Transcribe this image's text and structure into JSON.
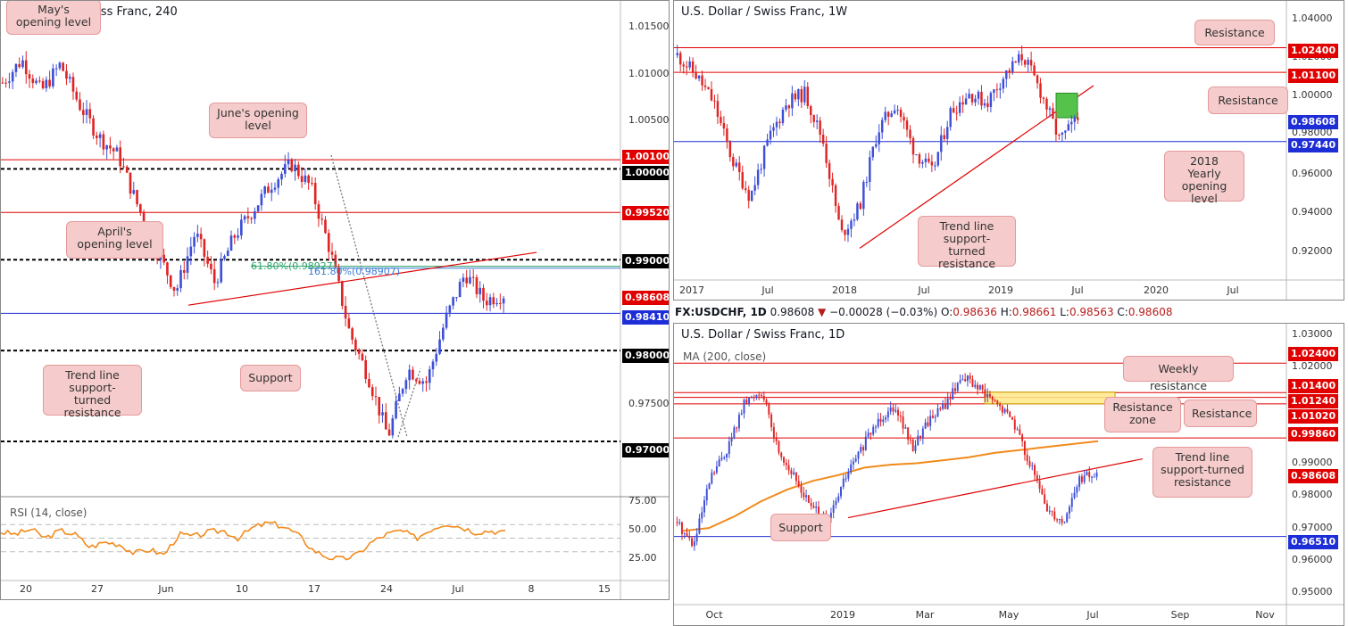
{
  "panels": {
    "h4": {
      "title": "U.S. Dollar / Swiss Franc, 240",
      "y_ticks": [
        "1.01500",
        "1.01000",
        "1.00500",
        "0.97500"
      ],
      "x_ticks": [
        "20",
        "27",
        "Jun",
        "10",
        "17",
        "24",
        "Jul",
        "8",
        "15"
      ],
      "price_tags": [
        {
          "label": "1.00100",
          "color": "#e00000"
        },
        {
          "label": "1.00000",
          "color": "#000000"
        },
        {
          "label": "0.99520",
          "color": "#e00000"
        },
        {
          "label": "0.99000",
          "color": "#000000"
        },
        {
          "label": "0.98608",
          "color": "#e00000"
        },
        {
          "label": "0.98410",
          "color": "#1e2ed6"
        },
        {
          "label": "0.98000",
          "color": "#000000"
        },
        {
          "label": "0.97000",
          "color": "#000000"
        }
      ],
      "fib_labels": [
        "61.80%(0.98927)",
        "161.80%(0.98907)"
      ],
      "callouts": {
        "may": "May's opening level",
        "june": "June's opening level",
        "april": "April's opening level",
        "trendline": "Trend line support-turned resistance",
        "support": "Support"
      },
      "rsi": {
        "label": "RSI (14, close)",
        "ticks": [
          "75.00",
          "50.00",
          "25.00"
        ]
      }
    },
    "weekly": {
      "title": "U.S. Dollar / Swiss Franc, 1W",
      "y_ticks": [
        "1.04000",
        "1.02000",
        "1.00000",
        "0.98000",
        "0.96000",
        "0.94000",
        "0.92000"
      ],
      "x_ticks": [
        "2017",
        "Jul",
        "2018",
        "Jul",
        "2019",
        "Jul",
        "2020",
        "Jul"
      ],
      "price_tags": [
        {
          "label": "1.02400",
          "color": "#e00000"
        },
        {
          "label": "1.01100",
          "color": "#e00000"
        },
        {
          "label": "0.98608",
          "color": "#1e2ed6"
        },
        {
          "label": "0.97440",
          "color": "#1e2ed6"
        }
      ],
      "callouts": {
        "resistance1": "Resistance",
        "resistance2": "Resistance",
        "yearly": "2018 Yearly opening level",
        "trendline": "Trend line support-turned resistance"
      }
    },
    "daily": {
      "title": "U.S. Dollar / Swiss Franc, 1D",
      "ma_label": "MA (200, close)",
      "y_ticks": [
        "1.03000",
        "1.02000",
        "0.99000",
        "0.98000",
        "0.97000",
        "0.96000",
        "0.95000"
      ],
      "x_ticks": [
        "Oct",
        "2019",
        "Mar",
        "May",
        "Jul",
        "Sep",
        "Nov"
      ],
      "price_tags": [
        {
          "label": "1.02400",
          "color": "#e00000"
        },
        {
          "label": "1.01400",
          "color": "#e00000"
        },
        {
          "label": "1.01240",
          "color": "#e00000"
        },
        {
          "label": "1.01020",
          "color": "#e00000"
        },
        {
          "label": "0.99860",
          "color": "#e00000"
        },
        {
          "label": "0.98608",
          "color": "#e00000"
        },
        {
          "label": "0.96510",
          "color": "#1e2ed6"
        }
      ],
      "callouts": {
        "weekly_res": "Weekly resistance",
        "res_zone": "Resistance zone",
        "resistance": "Resistance",
        "trendline": "Trend line support-turned resistance",
        "support": "Support"
      }
    }
  },
  "info_bar": {
    "symbol": "FX:USDCHF, 1D",
    "last": "0.98608",
    "arrow": "▼",
    "change": "−0.00028 (−0.03%)",
    "o_label": "O:",
    "o": "0.98636",
    "h_label": "H:",
    "h": "0.98661",
    "l_label": "L:",
    "l": "0.98563",
    "c_label": "C:",
    "c": "0.98608"
  },
  "colors": {
    "up": "#3d4fd6",
    "down": "#e02424",
    "level_red": "#e00000",
    "level_blue": "#1e2ed6",
    "ma": "#f28a1c",
    "rsi": "#f28a1c"
  },
  "chart_data": [
    {
      "type": "line",
      "title": "U.S. Dollar / Swiss Franc, 240",
      "ylim": [
        0.965,
        1.0175
      ],
      "series": [
        {
          "values": [
            1.0095,
            1.012,
            1.0085,
            1.0115,
            1.007,
            1.0035,
            1.0015,
            0.996,
            0.991,
            0.9865,
            0.993,
            0.9875,
            0.9925,
            0.9955,
            0.9985,
            1.0005,
            0.998,
            0.991,
            0.982,
            0.977,
            0.9705,
            0.978,
            0.9765,
            0.9835,
            0.9885,
            0.9855,
            0.9862
          ]
        }
      ],
      "levels": [
        1.001,
        1.0,
        0.9952,
        0.99,
        0.9841,
        0.98,
        0.97
      ]
    },
    {
      "type": "line",
      "title": "U.S. Dollar / Swiss Franc, 1W",
      "ylim": [
        0.905,
        1.045
      ],
      "series": [
        {
          "values": [
            1.02,
            1.01,
            0.995,
            0.965,
            0.945,
            0.975,
            0.995,
            1.0,
            0.975,
            0.925,
            0.94,
            0.98,
            0.995,
            0.97,
            0.958,
            0.99,
            1.0,
            0.995,
            1.01,
            1.02,
            1.0,
            0.975,
            0.9861
          ]
        }
      ],
      "levels": [
        1.024,
        1.011,
        0.9744
      ]
    },
    {
      "type": "line",
      "title": "U.S. Dollar / Swiss Franc, 1D",
      "ylim": [
        0.945,
        1.035
      ],
      "series": [
        {
          "values": [
            0.97,
            0.962,
            0.985,
            0.995,
            1.01,
            1.015,
            0.995,
            0.985,
            0.975,
            0.97,
            0.985,
            0.995,
            1.005,
            1.01,
            0.995,
            1.005,
            1.01,
            1.02,
            1.015,
            1.01,
            1.005,
            0.99,
            0.975,
            0.97,
            0.985,
            0.9861
          ]
        }
      ],
      "levels": [
        1.024,
        1.014,
        1.0124,
        1.0102,
        0.9986,
        0.9651
      ]
    }
  ]
}
